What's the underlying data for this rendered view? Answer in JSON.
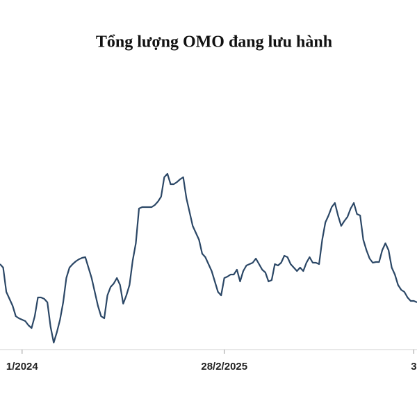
{
  "chart_data": {
    "type": "line",
    "title": "Tổng lượng OMO đang lưu hành",
    "categories": [
      null,
      null,
      null,
      null,
      null,
      null,
      null,
      "1/2024",
      null,
      null,
      null,
      null,
      null,
      null,
      null,
      null,
      null,
      null,
      null,
      null,
      null,
      null,
      null,
      null,
      null,
      null,
      null,
      null,
      null,
      null,
      null,
      null,
      null,
      null,
      null,
      null,
      null,
      null,
      null,
      null,
      null,
      null,
      null,
      null,
      null,
      null,
      null,
      null,
      null,
      null,
      null,
      null,
      null,
      null,
      null,
      null,
      null,
      null,
      null,
      null,
      null,
      null,
      null,
      null,
      null,
      null,
      null,
      null,
      null,
      null,
      null,
      "28/2/2025",
      null,
      null,
      null,
      null,
      null,
      null,
      null,
      null,
      null,
      null,
      null,
      null,
      null,
      null,
      null,
      null,
      null,
      null,
      null,
      null,
      null,
      null,
      null,
      null,
      null,
      null,
      null,
      null,
      null,
      null,
      null,
      null,
      null,
      null,
      null,
      null,
      null,
      null,
      null,
      null,
      null,
      null,
      null,
      null,
      null,
      null,
      null,
      null,
      null,
      null,
      null,
      null,
      null,
      null,
      null,
      null,
      null,
      null,
      null,
      "3",
      null
    ],
    "values": [
      123,
      118,
      83,
      73,
      63,
      48,
      45,
      43,
      41,
      35,
      31,
      48,
      75,
      75,
      73,
      68,
      33,
      10,
      25,
      43,
      68,
      103,
      118,
      123,
      127,
      130,
      132,
      133,
      118,
      103,
      83,
      63,
      48,
      45,
      78,
      90,
      95,
      103,
      93,
      66,
      78,
      93,
      128,
      153,
      203,
      205,
      205,
      205,
      205,
      208,
      213,
      220,
      248,
      253,
      238,
      238,
      241,
      245,
      248,
      218,
      198,
      178,
      168,
      158,
      138,
      133,
      123,
      113,
      98,
      83,
      78,
      103,
      105,
      108,
      108,
      115,
      98,
      113,
      121,
      123,
      125,
      131,
      123,
      115,
      111,
      98,
      100,
      123,
      121,
      125,
      135,
      133,
      123,
      118,
      113,
      118,
      113,
      125,
      133,
      125,
      125,
      123,
      158,
      183,
      193,
      205,
      211,
      193,
      178,
      185,
      191,
      203,
      211,
      195,
      193,
      158,
      143,
      131,
      125,
      126,
      126,
      143,
      153,
      143,
      118,
      108,
      93,
      86,
      83,
      75,
      70,
      70,
      68
    ],
    "color": "#2b4766",
    "ylim": [
      0,
      300
    ]
  }
}
